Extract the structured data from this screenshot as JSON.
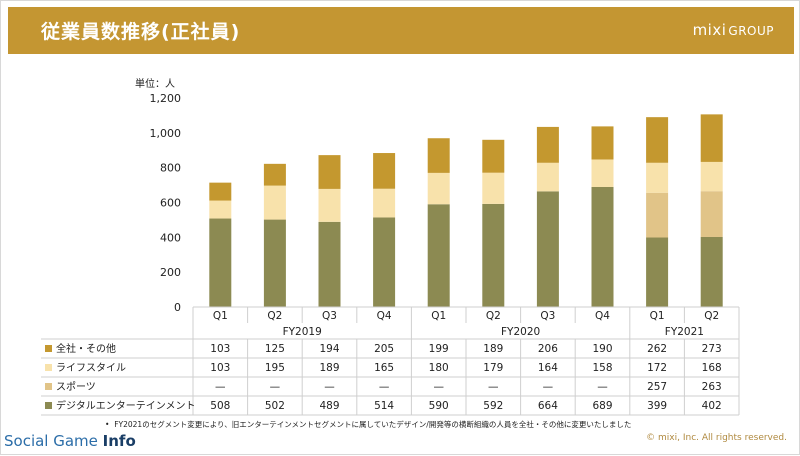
{
  "header": {
    "title": "従業員数推移(正社員)",
    "brand": "mixi",
    "brand_sub": "GROUP"
  },
  "unit_label": "単位：人",
  "footnote": "FY2021のセグメント変更により、旧エンターテインメントセグメントに属していたデザイン/開発等の横断組織の人員を全社・その他に変更いたしました",
  "footnote_bullet": "•",
  "copyright": "© mixi, Inc. All rights reserved.",
  "watermark": {
    "part1": "Social Game ",
    "part2": "Info"
  },
  "chart_data": {
    "type": "bar",
    "stacked": true,
    "categories": [
      "Q1",
      "Q2",
      "Q3",
      "Q4",
      "Q1",
      "Q2",
      "Q3",
      "Q4",
      "Q1",
      "Q2"
    ],
    "groups": [
      {
        "label": "FY2019",
        "count": 4
      },
      {
        "label": "FY2020",
        "count": 4
      },
      {
        "label": "FY2021",
        "count": 2
      }
    ],
    "ylim": [
      0,
      1200
    ],
    "yticks": [
      0,
      200,
      400,
      600,
      800,
      1000,
      1200
    ],
    "ytick_labels": [
      "0",
      "200",
      "400",
      "600",
      "800",
      "1,000",
      "1,200"
    ],
    "ylabel": "単位：人",
    "series": [
      {
        "name": "デジタルエンターテインメント",
        "color": "#8c8a52",
        "values": [
          508,
          502,
          489,
          514,
          590,
          592,
          664,
          689,
          399,
          402
        ],
        "labels": [
          "508",
          "502",
          "489",
          "514",
          "590",
          "592",
          "664",
          "689",
          "399",
          "402"
        ]
      },
      {
        "name": "スポーツ",
        "color": "#e1c488",
        "values": [
          0,
          0,
          0,
          0,
          0,
          0,
          0,
          0,
          257,
          263
        ],
        "labels": [
          "—",
          "—",
          "—",
          "—",
          "—",
          "—",
          "—",
          "—",
          "257",
          "263"
        ]
      },
      {
        "name": "ライフスタイル",
        "color": "#f8e2ab",
        "values": [
          103,
          195,
          189,
          165,
          180,
          179,
          164,
          158,
          172,
          168
        ],
        "labels": [
          "103",
          "195",
          "189",
          "165",
          "180",
          "179",
          "164",
          "158",
          "172",
          "168"
        ]
      },
      {
        "name": "全社・その他",
        "color": "#c4982f",
        "values": [
          103,
          125,
          194,
          205,
          199,
          189,
          206,
          190,
          262,
          273
        ],
        "labels": [
          "103",
          "125",
          "194",
          "205",
          "199",
          "189",
          "206",
          "190",
          "262",
          "273"
        ]
      }
    ],
    "table_row_order": [
      "全社・その他",
      "ライフスタイル",
      "スポーツ",
      "デジタルエンターテインメント"
    ],
    "grid": false,
    "legend": "table"
  }
}
